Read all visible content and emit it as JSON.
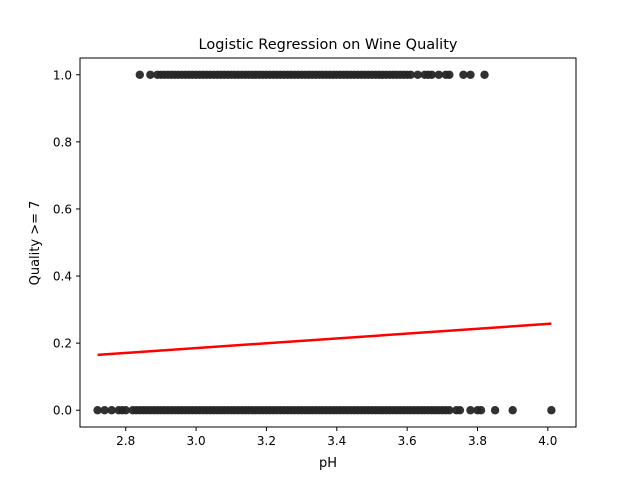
{
  "chart_data": {
    "type": "scatter",
    "title": "Logistic Regression on Wine Quality",
    "xlabel": "pH",
    "ylabel": "Quality >= 7",
    "xlim": [
      2.67,
      4.08
    ],
    "ylim": [
      -0.05,
      1.05
    ],
    "xticks": [
      2.8,
      3.0,
      3.2,
      3.4,
      3.6,
      3.8,
      4.0
    ],
    "xtick_labels": [
      "2.8",
      "3.0",
      "3.2",
      "3.4",
      "3.6",
      "3.8",
      "4.0"
    ],
    "yticks": [
      0.0,
      0.2,
      0.4,
      0.6,
      0.8,
      1.0
    ],
    "ytick_labels": [
      "0.0",
      "0.2",
      "0.4",
      "0.6",
      "0.8",
      "1.0"
    ],
    "grid": false,
    "legend": "none",
    "point_color": "#262626",
    "curve_color": "#ff0000",
    "points_quality_1_x": [
      2.84,
      2.87,
      2.89,
      2.9,
      2.91,
      2.92,
      2.93,
      2.94,
      2.95,
      2.96,
      2.97,
      2.98,
      2.99,
      3.0,
      3.01,
      3.02,
      3.03,
      3.04,
      3.05,
      3.06,
      3.07,
      3.08,
      3.09,
      3.1,
      3.11,
      3.12,
      3.13,
      3.14,
      3.15,
      3.16,
      3.17,
      3.18,
      3.19,
      3.2,
      3.21,
      3.22,
      3.23,
      3.24,
      3.25,
      3.26,
      3.27,
      3.28,
      3.29,
      3.3,
      3.31,
      3.32,
      3.33,
      3.34,
      3.35,
      3.36,
      3.37,
      3.38,
      3.39,
      3.4,
      3.41,
      3.42,
      3.43,
      3.44,
      3.45,
      3.46,
      3.47,
      3.48,
      3.49,
      3.5,
      3.51,
      3.52,
      3.53,
      3.54,
      3.55,
      3.56,
      3.57,
      3.58,
      3.59,
      3.6,
      3.61,
      3.63,
      3.65,
      3.66,
      3.67,
      3.69,
      3.71,
      3.72,
      3.76,
      3.78,
      3.82
    ],
    "points_quality_0_x": [
      2.72,
      2.74,
      2.76,
      2.78,
      2.79,
      2.8,
      2.82,
      2.83,
      2.84,
      2.85,
      2.86,
      2.87,
      2.88,
      2.89,
      2.9,
      2.91,
      2.92,
      2.93,
      2.94,
      2.95,
      2.96,
      2.97,
      2.98,
      2.99,
      3.0,
      3.01,
      3.02,
      3.03,
      3.04,
      3.05,
      3.06,
      3.07,
      3.08,
      3.09,
      3.1,
      3.11,
      3.12,
      3.13,
      3.14,
      3.15,
      3.16,
      3.17,
      3.18,
      3.19,
      3.2,
      3.21,
      3.22,
      3.23,
      3.24,
      3.25,
      3.26,
      3.27,
      3.28,
      3.29,
      3.3,
      3.31,
      3.32,
      3.33,
      3.34,
      3.35,
      3.36,
      3.37,
      3.38,
      3.39,
      3.4,
      3.41,
      3.42,
      3.43,
      3.44,
      3.45,
      3.46,
      3.47,
      3.48,
      3.49,
      3.5,
      3.51,
      3.52,
      3.53,
      3.54,
      3.55,
      3.56,
      3.57,
      3.58,
      3.59,
      3.6,
      3.61,
      3.62,
      3.63,
      3.64,
      3.65,
      3.66,
      3.67,
      3.68,
      3.69,
      3.7,
      3.71,
      3.72,
      3.74,
      3.75,
      3.78,
      3.8,
      3.81,
      3.85,
      3.9,
      4.01
    ],
    "fit_line": {
      "x": [
        2.72,
        4.01
      ],
      "y": [
        0.165,
        0.258
      ]
    }
  }
}
